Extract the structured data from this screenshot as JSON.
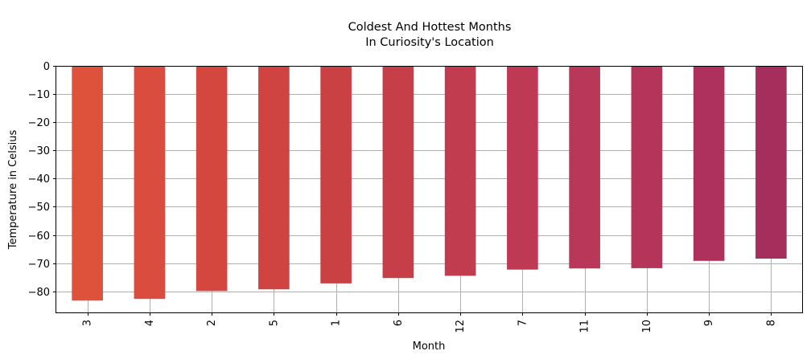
{
  "chart_data": {
    "type": "bar",
    "title_line1": "Coldest And Hottest Months",
    "title_line2": "In Curiosity's Location",
    "xlabel": "Month",
    "ylabel": "Temperature in Celsius",
    "categories": [
      "3",
      "4",
      "2",
      "5",
      "1",
      "6",
      "12",
      "7",
      "11",
      "10",
      "9",
      "8"
    ],
    "values": [
      -83.3,
      -82.7,
      -79.9,
      -79.3,
      -77.2,
      -75.3,
      -74.5,
      -72.3,
      -71.9,
      -71.8,
      -69.2,
      -68.4
    ],
    "ylim": [
      -87.5,
      0
    ],
    "yticks": [
      0,
      -10,
      -20,
      -30,
      -40,
      -50,
      -60,
      -70,
      -80
    ],
    "ytick_labels": [
      "0",
      "−10",
      "−20",
      "−30",
      "−40",
      "−50",
      "−60",
      "−70",
      "−80"
    ],
    "grid": true,
    "colors": [
      "#de513b",
      "#da4c3e",
      "#d4473f",
      "#cf4441",
      "#ca4143",
      "#c63e47",
      "#c13c4f",
      "#bd3954",
      "#b93758",
      "#b4345a",
      "#ae305c",
      "#a62e5d"
    ]
  }
}
